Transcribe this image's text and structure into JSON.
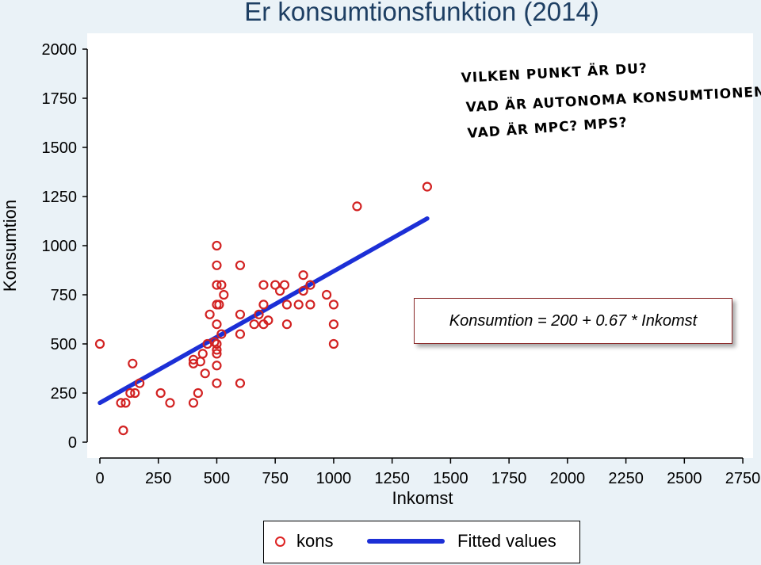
{
  "chart_data": {
    "type": "scatter",
    "title": "Er konsumtionsfunktion (2014)",
    "xlabel": "Inkomst",
    "ylabel": "Konsumtion",
    "xlim": [
      -50,
      2750
    ],
    "ylim": [
      0,
      2000
    ],
    "x_ticks": [
      0,
      250,
      500,
      750,
      1000,
      1250,
      1500,
      1750,
      2000,
      2250,
      2500,
      2750
    ],
    "y_ticks": [
      0,
      250,
      500,
      750,
      1000,
      1250,
      1500,
      1750,
      2000
    ],
    "grid": false,
    "legend_position": "bottom",
    "series": [
      {
        "name": "kons",
        "mark": "hollow-circle",
        "color": "#d22222",
        "points": [
          [
            0,
            500
          ],
          [
            90,
            200
          ],
          [
            100,
            60
          ],
          [
            110,
            200
          ],
          [
            130,
            250
          ],
          [
            140,
            400
          ],
          [
            150,
            250
          ],
          [
            170,
            300
          ],
          [
            260,
            250
          ],
          [
            300,
            200
          ],
          [
            400,
            200
          ],
          [
            400,
            400
          ],
          [
            400,
            420
          ],
          [
            420,
            250
          ],
          [
            430,
            410
          ],
          [
            440,
            450
          ],
          [
            450,
            350
          ],
          [
            460,
            500
          ],
          [
            470,
            650
          ],
          [
            490,
            510
          ],
          [
            500,
            300
          ],
          [
            500,
            390
          ],
          [
            500,
            450
          ],
          [
            500,
            470
          ],
          [
            500,
            500
          ],
          [
            500,
            600
          ],
          [
            500,
            700
          ],
          [
            500,
            800
          ],
          [
            500,
            900
          ],
          [
            500,
            1000
          ],
          [
            510,
            700
          ],
          [
            520,
            800
          ],
          [
            530,
            750
          ],
          [
            520,
            550
          ],
          [
            600,
            300
          ],
          [
            600,
            550
          ],
          [
            600,
            650
          ],
          [
            600,
            900
          ],
          [
            660,
            600
          ],
          [
            680,
            650
          ],
          [
            700,
            600
          ],
          [
            700,
            700
          ],
          [
            700,
            800
          ],
          [
            720,
            620
          ],
          [
            750,
            800
          ],
          [
            770,
            770
          ],
          [
            790,
            800
          ],
          [
            800,
            600
          ],
          [
            800,
            700
          ],
          [
            850,
            700
          ],
          [
            870,
            770
          ],
          [
            870,
            850
          ],
          [
            900,
            700
          ],
          [
            900,
            800
          ],
          [
            970,
            750
          ],
          [
            1000,
            500
          ],
          [
            1000,
            600
          ],
          [
            1000,
            700
          ],
          [
            1100,
            1200
          ],
          [
            1400,
            1300
          ]
        ]
      },
      {
        "name": "Fitted values",
        "mark": "line",
        "color": "#1c2fd6",
        "points": [
          [
            0,
            200
          ],
          [
            1400,
            1138
          ]
        ]
      }
    ],
    "annotations": [
      "VILKEN PUNKT ÄR DU?",
      "VAD ÄR AUTONOMA KONSUMTIONEN?",
      "VAD ÄR MPC? MPS?"
    ],
    "equation": "Konsumtion = 200 + 0.67 * Inkomst"
  }
}
